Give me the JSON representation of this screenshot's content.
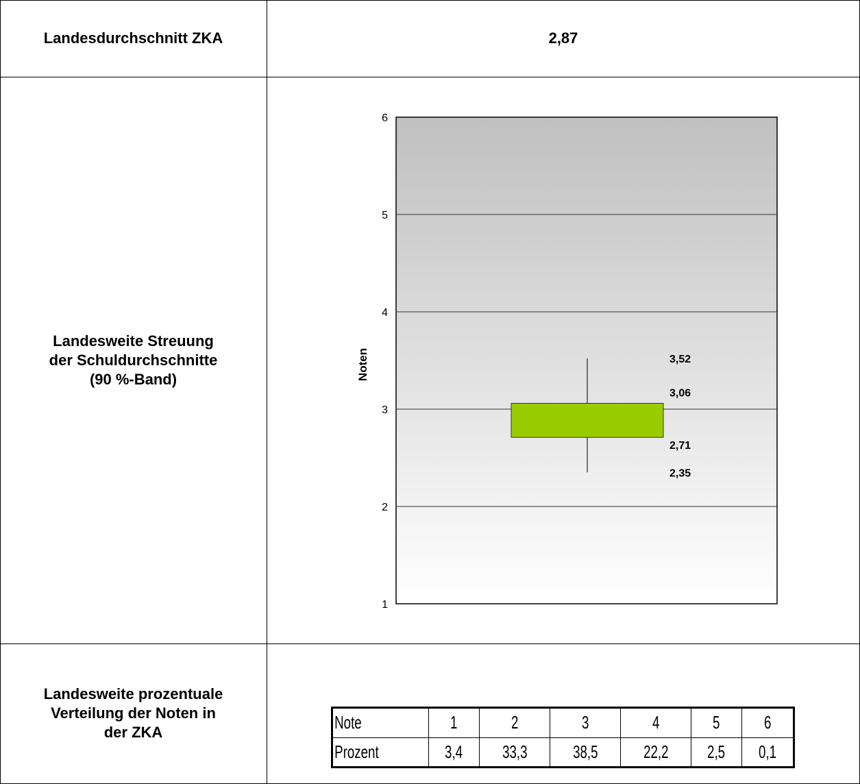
{
  "rows": {
    "average": {
      "label": "Landesdurchschnitt ZKA",
      "value": "2,87"
    },
    "spread": {
      "label_lines": [
        "Landesweite Streuung",
        "der Schuldurchschnitte",
        "(90 %-Band)"
      ]
    },
    "distribution": {
      "label_lines": [
        "Landesweite prozentuale",
        "Verteilung der Noten in",
        "der ZKA"
      ]
    }
  },
  "chart_data": {
    "type": "box",
    "ylabel": "Noten",
    "ylim": [
      1,
      6
    ],
    "yticks": [
      "1",
      "2",
      "3",
      "4",
      "5",
      "6"
    ],
    "grid": true,
    "box": {
      "whisker_high": 3.52,
      "q_high": 3.06,
      "q_low": 2.71,
      "whisker_low": 2.35
    },
    "value_labels": [
      "3,52",
      "3,06",
      "2,71",
      "2,35"
    ],
    "box_color": "#99cc00",
    "background_gradient": [
      "#c0c0c0",
      "#ffffff"
    ]
  },
  "distribution_table": {
    "header_label": "Note",
    "value_label": "Prozent",
    "grades": [
      "1",
      "2",
      "3",
      "4",
      "5",
      "6"
    ],
    "percent": [
      "3,4",
      "33,3",
      "38,5",
      "22,2",
      "2,5",
      "0,1"
    ]
  }
}
